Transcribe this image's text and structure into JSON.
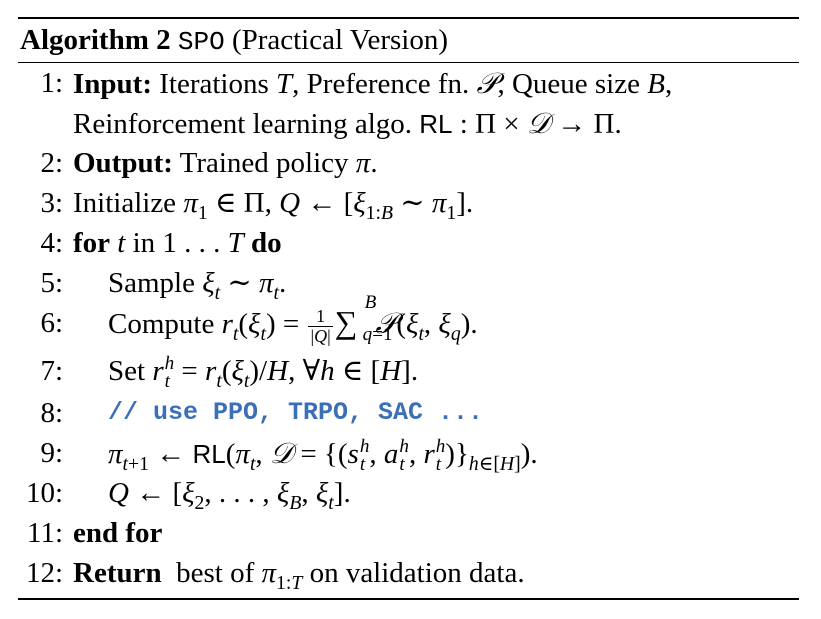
{
  "algorithm": {
    "caption_label": "Algorithm 2",
    "caption_name": "SPO",
    "caption_rest": "(Practical Version)"
  },
  "lines": [
    {
      "num": "1:",
      "keyword": "Input:",
      "text": "Iterations T, Preference fn. 𝒫, Queue size B,"
    },
    {
      "num": "",
      "text": "Reinforcement learning algo. RL : Π × 𝒟 → Π."
    },
    {
      "num": "2:",
      "keyword": "Output:",
      "text": "Trained policy π."
    },
    {
      "num": "3:",
      "text": "Initialize π₁ ∈ Π, Q ← [ξ₁:B ∼ π₁]."
    },
    {
      "num": "4:",
      "keyword": "for",
      "text": "t in 1 . . . T",
      "keyword2": "do"
    },
    {
      "num": "5:",
      "text": "Sample ξt ∼ πt."
    },
    {
      "num": "6:",
      "text": "Compute rt(ξt) = 1/|Q| Σ_{q=1}^{B} 𝒫(ξt, ξq)."
    },
    {
      "num": "7:",
      "text": "Set rt^h = rt(ξt)/H, ∀h ∈ [H]."
    },
    {
      "num": "8:",
      "text": "// use PPO, TRPO, SAC ..."
    },
    {
      "num": "9:",
      "text": "πt+1 ← RL(πt, 𝒟 = {(st^h, at^h, rt^h)}h∈[H])."
    },
    {
      "num": "10:",
      "text": "Q ← [ξ2, . . . , ξB, ξt]."
    },
    {
      "num": "11:",
      "keyword": "end for"
    },
    {
      "num": "12:",
      "keyword": "Return",
      "text": "best of π1:T on validation data."
    }
  ]
}
